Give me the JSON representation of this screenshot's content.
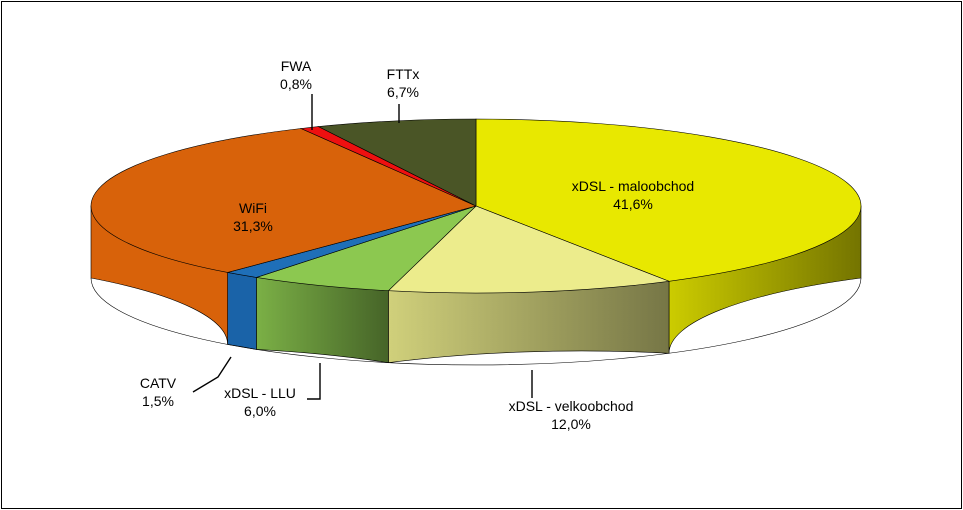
{
  "chart_data": {
    "type": "pie",
    "variant": "3d",
    "slices": [
      {
        "name": "xDSL - maloobchod",
        "value": 41.6,
        "label": "41,6%",
        "color": "#E8E800",
        "side": "#666600",
        "grad": true
      },
      {
        "name": "xDSL - velkoobchod",
        "value": 12.0,
        "label": "12,0%",
        "color": "#ECEC8C",
        "side": "#CCCC88",
        "grad": true
      },
      {
        "name": "xDSL - LLU",
        "value": 6.0,
        "label": "6,0%",
        "color": "#8CC850",
        "side": "#7DB548",
        "grad": true
      },
      {
        "name": "CATV",
        "value": 1.5,
        "label": "1,5%",
        "color": "#1F6FB8",
        "side": "#1A63A8",
        "grad": false
      },
      {
        "name": "WiFi",
        "value": 31.3,
        "label": "31,3%",
        "color": "#D8620A",
        "side": "#D8620A",
        "grad": false
      },
      {
        "name": "FWA",
        "value": 0.8,
        "label": "0,8%",
        "color": "#EE1010",
        "side": "#CC0000",
        "grad": false
      },
      {
        "name": "FTTx",
        "value": 6.7,
        "label": "6,7%",
        "color": "#4A5526",
        "side": "#3E4720",
        "grad": false
      }
    ],
    "start_angle_deg": 90,
    "direction": "clockwise",
    "legend": "none",
    "data_labels": "category-name-and-percent"
  }
}
